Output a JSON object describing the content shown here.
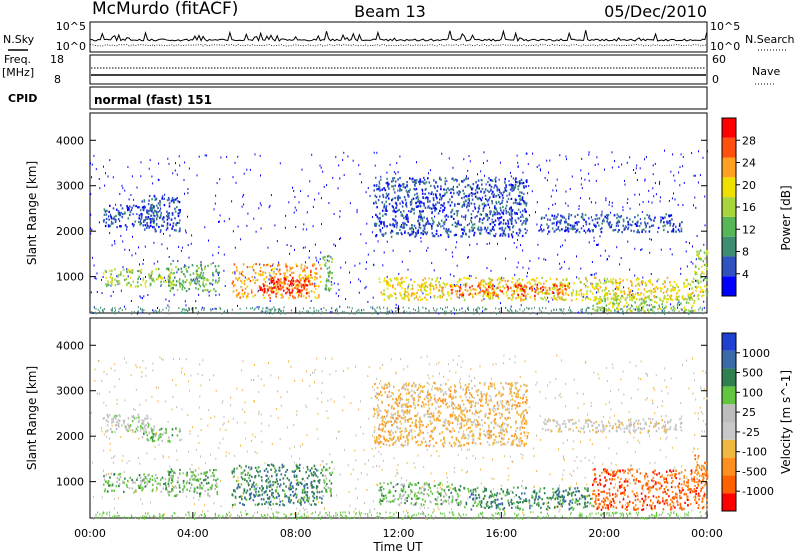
{
  "header": {
    "station": "McMurdo (fitACF)",
    "beam": "Beam 13",
    "date": "05/Dec/2010"
  },
  "strip_labels": {
    "nsky": "N.Sky",
    "nsearch": "N.Search",
    "freq": "Freq.",
    "freq_unit": "[MHz]",
    "nave": "Nave",
    "cpid": "CPID",
    "cpid_value": "normal (fast) 151"
  },
  "strip_ticks": {
    "noise_left_top": "10^5",
    "noise_left_bottom": "10^0",
    "noise_right_top": "10^5",
    "noise_right_bottom": "10^0",
    "freq_left_top": "18",
    "freq_left_bottom": "8",
    "nave_right_top": "60",
    "nave_right_bottom": "0"
  },
  "colors": {
    "power_scale": [
      "#0000ff",
      "#2f52c0",
      "#3e8c72",
      "#57b757",
      "#a8d53c",
      "#f0e000",
      "#ffa020",
      "#ff5010",
      "#ff0000"
    ],
    "velocity_scale": [
      "#2040d0",
      "#3a6aa8",
      "#2f7f50",
      "#62c540",
      "#bdbdbd",
      "#c8c8c8",
      "#f0b840",
      "#ff9020",
      "#ff6000",
      "#ff0000"
    ]
  },
  "chart_data": [
    {
      "type": "heatmap",
      "name": "power",
      "ylabel": "Slant Range [km]",
      "yticks": [
        "1000",
        "2000",
        "3000",
        "4000"
      ],
      "ylim": [
        200,
        4600
      ],
      "xlim_hours": [
        0,
        24
      ],
      "colorbar_label": "Power [dB]",
      "colorbar_ticks": [
        "4",
        "8",
        "12",
        "16",
        "20",
        "24",
        "28"
      ],
      "regions": [
        {
          "t0": 0.5,
          "t1": 3.2,
          "r0": 800,
          "r1": 1200,
          "level": 4
        },
        {
          "t0": 0.5,
          "t1": 2.5,
          "r0": 2100,
          "r1": 2600,
          "level": 1
        },
        {
          "t0": 2.0,
          "t1": 3.5,
          "r0": 2000,
          "r1": 2800,
          "level": 1
        },
        {
          "t0": 3.0,
          "t1": 5.0,
          "r0": 700,
          "r1": 1300,
          "level": 3
        },
        {
          "t0": 5.5,
          "t1": 9.0,
          "r0": 550,
          "r1": 1300,
          "level": 6
        },
        {
          "t0": 6.5,
          "t1": 8.5,
          "r0": 650,
          "r1": 1000,
          "level": 8
        },
        {
          "t0": 9.0,
          "t1": 9.4,
          "r0": 700,
          "r1": 1500,
          "level": 3
        },
        {
          "t0": 11.2,
          "t1": 23.8,
          "r0": 500,
          "r1": 1000,
          "level": 5
        },
        {
          "t0": 14.0,
          "t1": 18.5,
          "r0": 600,
          "r1": 850,
          "level": 7
        },
        {
          "t0": 11.0,
          "t1": 17.0,
          "r0": 1900,
          "r1": 3200,
          "level": 1
        },
        {
          "t0": 17.5,
          "t1": 23.0,
          "r0": 2000,
          "r1": 2400,
          "level": 1
        },
        {
          "t0": 19.5,
          "t1": 23.5,
          "r0": 250,
          "r1": 600,
          "level": 4
        },
        {
          "t0": 23.5,
          "t1": 24.0,
          "r0": 600,
          "r1": 1600,
          "level": 4
        }
      ]
    },
    {
      "type": "heatmap",
      "name": "velocity",
      "ylabel": "Slant Range [km]",
      "yticks": [
        "1000",
        "2000",
        "3000",
        "4000"
      ],
      "ylim": [
        200,
        4600
      ],
      "xlim_hours": [
        0,
        24
      ],
      "xlabel": "Time UT",
      "xticks": [
        "00:00",
        "04:00",
        "08:00",
        "12:00",
        "16:00",
        "20:00",
        "00:00"
      ],
      "colorbar_label": "Velocity [m s^-1]",
      "colorbar_ticks": [
        "1000",
        "500",
        "100",
        "25",
        "-25",
        "-100",
        "-500",
        "-1000"
      ],
      "regions": [
        {
          "t0": 0.5,
          "t1": 3.2,
          "r0": 800,
          "r1": 1200,
          "level": 3
        },
        {
          "t0": 0.5,
          "t1": 2.5,
          "r0": 2100,
          "r1": 2500,
          "level": 4
        },
        {
          "t0": 2.0,
          "t1": 3.5,
          "r0": 1900,
          "r1": 2200,
          "level": 3
        },
        {
          "t0": 3.0,
          "t1": 5.0,
          "r0": 700,
          "r1": 1300,
          "level": 3
        },
        {
          "t0": 5.5,
          "t1": 9.0,
          "r0": 500,
          "r1": 1400,
          "level": 2
        },
        {
          "t0": 9.0,
          "t1": 9.4,
          "r0": 700,
          "r1": 1500,
          "level": 3
        },
        {
          "t0": 11.2,
          "t1": 14.5,
          "r0": 500,
          "r1": 1000,
          "level": 3
        },
        {
          "t0": 14.5,
          "t1": 19.5,
          "r0": 400,
          "r1": 900,
          "level": 2
        },
        {
          "t0": 19.5,
          "t1": 24.0,
          "r0": 400,
          "r1": 1300,
          "level": 8
        },
        {
          "t0": 11.0,
          "t1": 17.0,
          "r0": 1800,
          "r1": 3200,
          "level": 6
        },
        {
          "t0": 17.5,
          "t1": 23.0,
          "r0": 2100,
          "r1": 2400,
          "level": 5
        },
        {
          "t0": 23.5,
          "t1": 24.0,
          "r0": 1000,
          "r1": 1600,
          "level": 7
        }
      ]
    }
  ]
}
